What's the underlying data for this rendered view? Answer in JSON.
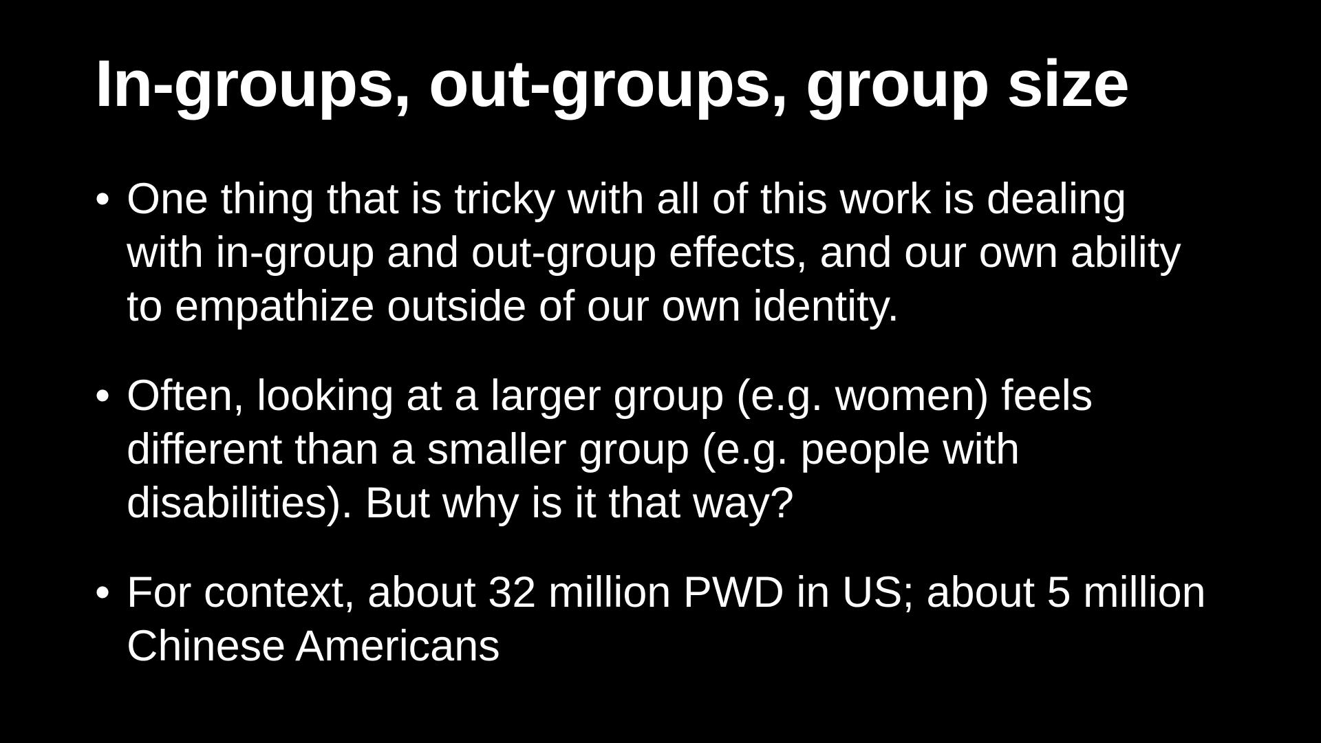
{
  "slide": {
    "title": "In-groups, out-groups, group size",
    "bullets": [
      {
        "marker": "•",
        "text": "One thing that is tricky with all of this work is dealing with in-group and out-group effects, and our own ability to empathize outside of our own identity."
      },
      {
        "marker": "•",
        "text": "Often, looking at a larger group (e.g. women) feels different than a smaller group (e.g. people with disabilities). But why is it that way?"
      },
      {
        "marker": "•",
        "text": "For context, about 32 million PWD in US; about 5 million Chinese Americans"
      }
    ]
  },
  "colors": {
    "background": "#000000",
    "text": "#ffffff"
  }
}
